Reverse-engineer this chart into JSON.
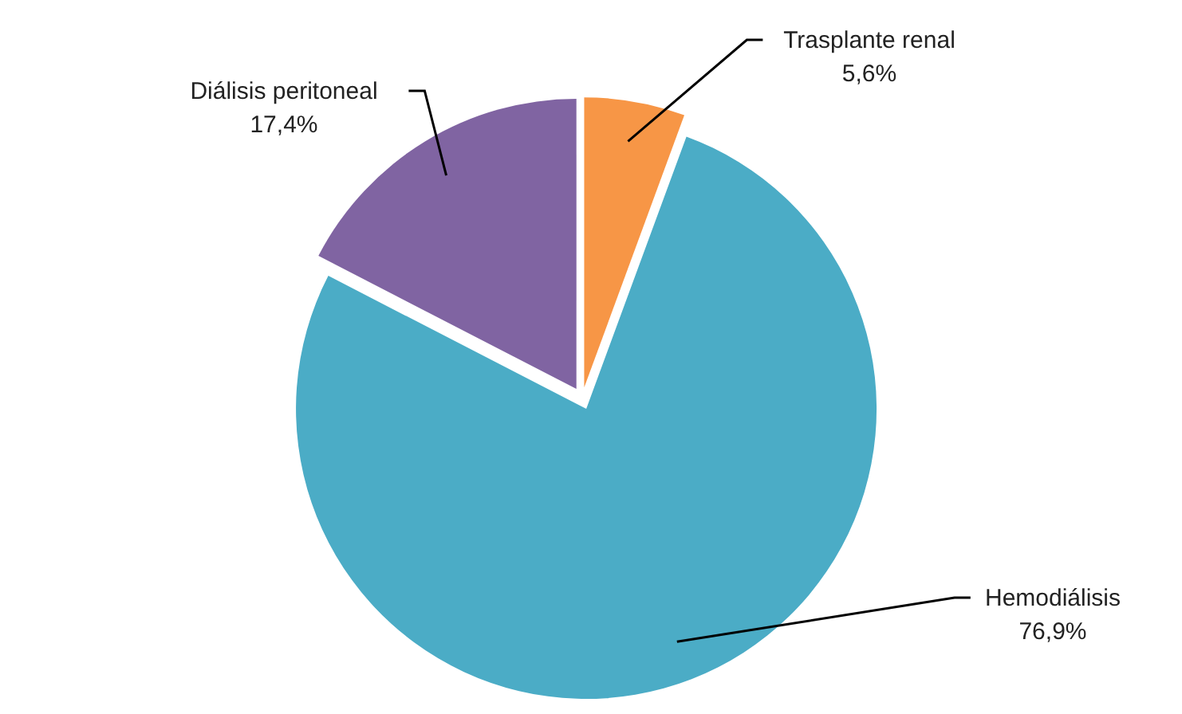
{
  "chart_data": {
    "type": "pie",
    "categories": [
      "Trasplante renal",
      "Hemodiálisis",
      "Diálisis peritoneal"
    ],
    "values": [
      5.6,
      76.9,
      17.4
    ],
    "colors": [
      "#f79646",
      "#4bacc6",
      "#8064a2"
    ],
    "value_labels": [
      "5,6%",
      "76,9%",
      "17,4%"
    ]
  }
}
